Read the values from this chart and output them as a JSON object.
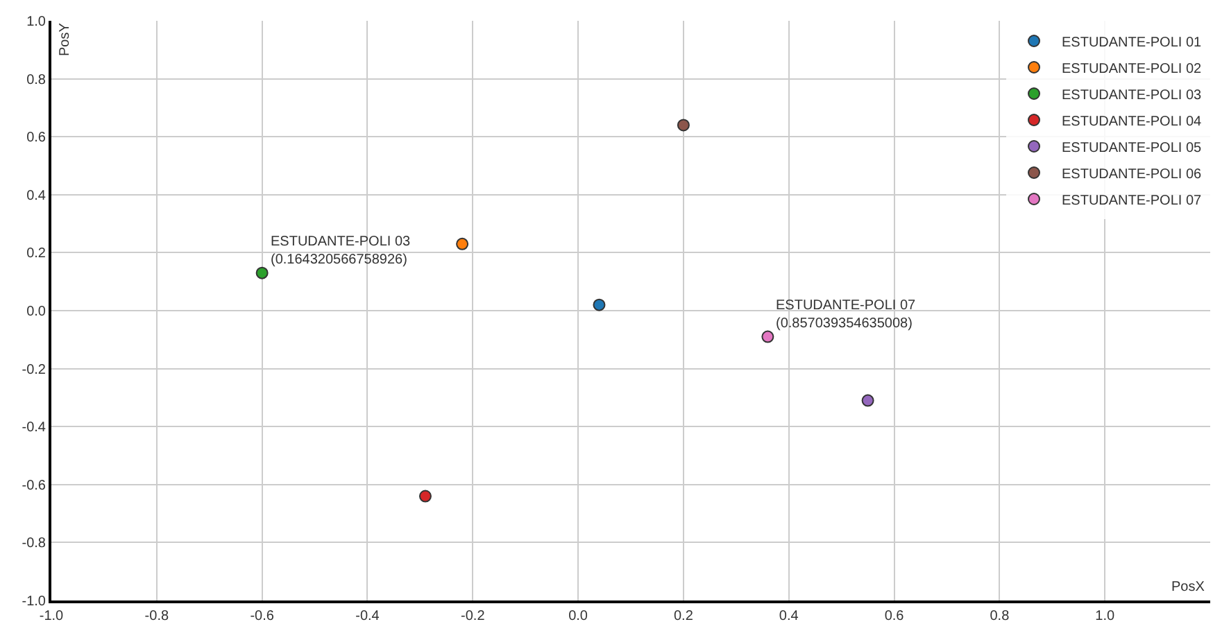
{
  "chart_data": {
    "type": "scatter",
    "xlabel": "PosX",
    "ylabel": "PosY",
    "series": [
      {
        "name": "ESTUDANTE-POLI 01",
        "color": "#1f77b4",
        "x": [
          0.04
        ],
        "values": [
          0.02
        ]
      },
      {
        "name": "ESTUDANTE-POLI 02",
        "color": "#ff7f0e",
        "x": [
          -0.22
        ],
        "values": [
          0.23
        ]
      },
      {
        "name": "ESTUDANTE-POLI 03",
        "color": "#2ca02c",
        "x": [
          -0.6
        ],
        "values": [
          0.13
        ]
      },
      {
        "name": "ESTUDANTE-POLI 04",
        "color": "#d62728",
        "x": [
          -0.29
        ],
        "values": [
          -0.64
        ]
      },
      {
        "name": "ESTUDANTE-POLI 05",
        "color": "#9467bd",
        "x": [
          0.55
        ],
        "values": [
          -0.31
        ]
      },
      {
        "name": "ESTUDANTE-POLI 06",
        "color": "#8c564b",
        "x": [
          0.2
        ],
        "values": [
          0.64
        ]
      },
      {
        "name": "ESTUDANTE-POLI 07",
        "color": "#e377c2",
        "x": [
          0.36
        ],
        "values": [
          -0.09
        ]
      }
    ],
    "annotations": [
      {
        "text": "ESTUDANTE-POLI 03\n(0.164320566758926)",
        "x": -0.6,
        "y": 0.13
      },
      {
        "text": "ESTUDANTE-POLI 07\n(0.857039354635008)",
        "x": 0.36,
        "y": -0.09
      }
    ],
    "xlim": [
      -1,
      1.2
    ],
    "xticks": [
      {
        "value": -1,
        "label": "-1.0"
      },
      {
        "value": -0.8,
        "label": "-0.8"
      },
      {
        "value": -0.6,
        "label": "-0.6"
      },
      {
        "value": -0.4,
        "label": "-0.4"
      },
      {
        "value": -0.2,
        "label": "-0.2"
      },
      {
        "value": 0,
        "label": "0.0"
      },
      {
        "value": 0.2,
        "label": "0.2"
      },
      {
        "value": 0.4,
        "label": "0.4"
      },
      {
        "value": 0.6,
        "label": "0.6"
      },
      {
        "value": 0.8,
        "label": "0.8"
      },
      {
        "value": 1,
        "label": "1.0"
      },
      {
        "value": 1.2,
        "label": null
      }
    ],
    "ylim": [
      -1,
      1
    ],
    "yticks": [
      {
        "value": -1,
        "label": "-1.0"
      },
      {
        "value": -0.8,
        "label": "-0.8"
      },
      {
        "value": -0.6,
        "label": "-0.6"
      },
      {
        "value": -0.4,
        "label": "-0.4"
      },
      {
        "value": -0.2,
        "label": "-0.2"
      },
      {
        "value": 0,
        "label": "0.0"
      },
      {
        "value": 0.2,
        "label": "0.2"
      },
      {
        "value": 0.4,
        "label": "0.4"
      },
      {
        "value": 0.6,
        "label": "0.6"
      },
      {
        "value": 0.8,
        "label": "0.8"
      },
      {
        "value": 1,
        "label": "1.0"
      }
    ],
    "grid": true,
    "legend": "top right",
    "marker": "circle"
  }
}
